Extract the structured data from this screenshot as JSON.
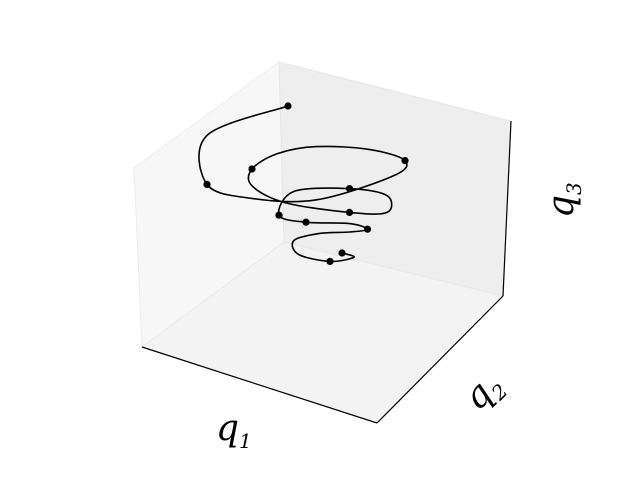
{
  "chart_data": {
    "type": "line",
    "projection": "3d",
    "grid": false,
    "ticks": false,
    "pane_color": "#f2f2f2",
    "line_color": "#000000",
    "marker_color": "#000000",
    "axes": {
      "x": {
        "label": "q",
        "subscript": "1"
      },
      "y": {
        "label": "q",
        "subscript": "2"
      },
      "z": {
        "label": "q",
        "subscript": "3"
      }
    },
    "series": [
      {
        "style": "line",
        "points": [
          [
            -0.36,
            1.0
          ],
          [
            -0.9,
            0.79
          ],
          [
            -0.9,
            0.44
          ],
          [
            -0.6,
            0.34
          ],
          [
            -0.17,
            0.33
          ],
          [
            0.34,
            0.5
          ],
          [
            0.42,
            0.61
          ],
          [
            0.18,
            0.69
          ],
          [
            -0.17,
            0.71
          ],
          [
            -0.43,
            0.66
          ],
          [
            -0.6,
            0.55
          ],
          [
            -0.6,
            0.43
          ],
          [
            -0.38,
            0.31
          ],
          [
            0.05,
            0.24
          ],
          [
            0.3,
            0.24
          ],
          [
            0.3,
            0.36
          ],
          [
            0.05,
            0.41
          ],
          [
            -0.32,
            0.39
          ],
          [
            -0.42,
            0.22
          ],
          [
            -0.24,
            0.17
          ],
          [
            0.05,
            0.16
          ],
          [
            0.17,
            0.12
          ],
          [
            0.05,
            0.1
          ],
          [
            -0.15,
            0.09
          ],
          [
            -0.32,
            0.04
          ],
          [
            -0.29,
            -0.06
          ],
          [
            -0.08,
            -0.11
          ],
          [
            0.08,
            -0.08
          ],
          [
            0.0,
            -0.05
          ]
        ]
      },
      {
        "style": "markers",
        "points": [
          [
            -0.36,
            1.0
          ],
          [
            -0.9,
            0.44
          ],
          [
            -0.6,
            0.55
          ],
          [
            0.42,
            0.61
          ],
          [
            0.05,
            0.41
          ],
          [
            -0.42,
            0.22
          ],
          [
            0.05,
            0.24
          ],
          [
            -0.24,
            0.17
          ],
          [
            0.17,
            0.12
          ],
          [
            0.0,
            -0.05
          ],
          [
            -0.08,
            -0.11
          ]
        ]
      }
    ]
  }
}
